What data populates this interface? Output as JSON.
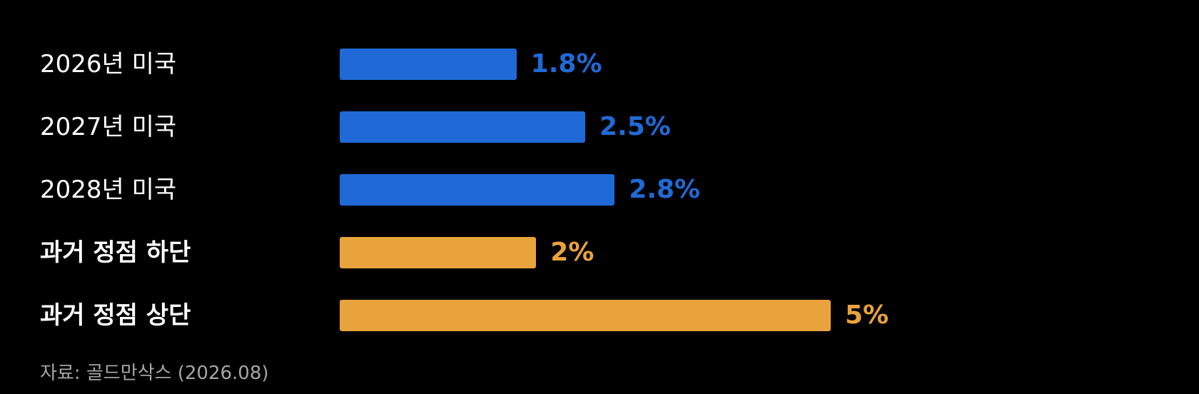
{
  "chart_data": {
    "type": "bar",
    "orientation": "horizontal",
    "categories": [
      "2026년 미국",
      "2027년 미국",
      "2028년 미국",
      "과거 정점 하단",
      "과거 정점 상단"
    ],
    "values": [
      1.8,
      2.5,
      2.8,
      2,
      5
    ],
    "value_labels": [
      "1.8%",
      "2.5%",
      "2.8%",
      "2%",
      "5%"
    ],
    "bar_colors": [
      "#1f6ad6",
      "#1f6ad6",
      "#1f6ad6",
      "#e9a33c",
      "#e9a33c"
    ],
    "label_bold": [
      false,
      false,
      false,
      true,
      true
    ],
    "xlim": [
      0,
      5
    ],
    "grid": false
  },
  "source": "자료: 골드만삭스 (2026.08)",
  "colors": {
    "background": "#000000",
    "projection_blue": "#1f6ad6",
    "historical_orange": "#e9a33c",
    "label_text": "#ffffff",
    "source_text": "#a6a6a6"
  }
}
